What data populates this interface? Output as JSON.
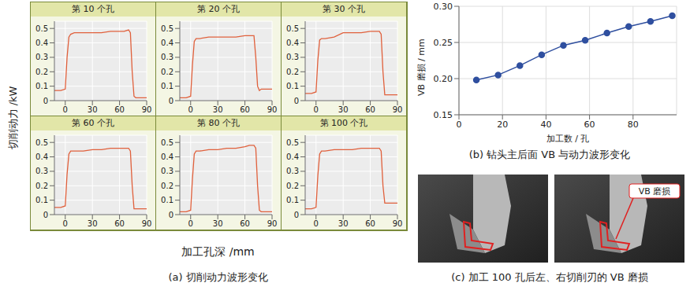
{
  "panel_a": {
    "ylabel": "切削动力 /kW",
    "xlabel": "加工孔深 /mm",
    "caption": "(a) 切削动力波形变化"
  },
  "panel_c": {
    "caption": "(c) 加工 100 孔后左、右切削刃的 VB 磨损",
    "annotation": "VB 磨损"
  },
  "chart_data": [
    {
      "type": "line",
      "title": "第 10 个孔",
      "x": [
        -12,
        -5,
        0,
        2,
        4,
        6,
        10,
        20,
        30,
        40,
        50,
        60,
        65,
        70,
        72,
        74,
        76,
        78,
        80,
        85,
        90
      ],
      "series": [
        {
          "name": "切削动力",
          "color": "#e0603c",
          "values": [
            0.07,
            0.07,
            0.08,
            0.3,
            0.44,
            0.46,
            0.47,
            0.47,
            0.47,
            0.47,
            0.48,
            0.48,
            0.48,
            0.49,
            0.47,
            0.2,
            0.03,
            0.02,
            0.02,
            0.02,
            0.02
          ]
        }
      ],
      "xlim": [
        -12,
        90
      ],
      "ylim": [
        0,
        0.55
      ],
      "xticks": [
        0,
        30,
        60,
        90
      ],
      "yticks": [
        0,
        0.1,
        0.2,
        0.3,
        0.4,
        0.5
      ],
      "grid": true,
      "marker": "none",
      "line_style": "solid"
    },
    {
      "type": "line",
      "title": "第 20 个孔",
      "x": [
        -12,
        -5,
        0,
        2,
        4,
        6,
        10,
        20,
        30,
        40,
        50,
        60,
        65,
        70,
        72,
        74,
        76,
        78,
        80,
        85,
        90
      ],
      "series": [
        {
          "name": "切削动力",
          "color": "#e0603c",
          "values": [
            0.02,
            0.02,
            0.03,
            0.25,
            0.41,
            0.43,
            0.43,
            0.44,
            0.44,
            0.44,
            0.44,
            0.45,
            0.45,
            0.45,
            0.3,
            0.1,
            0.07,
            0.08,
            0.08,
            0.08,
            0.08
          ]
        }
      ],
      "xlim": [
        -12,
        90
      ],
      "ylim": [
        0,
        0.55
      ],
      "xticks": [
        0,
        30,
        60,
        90
      ],
      "yticks": [
        0,
        0.1,
        0.2,
        0.3,
        0.4,
        0.5
      ],
      "grid": true,
      "marker": "none",
      "line_style": "solid"
    },
    {
      "type": "line",
      "title": "第 30 个孔",
      "x": [
        -12,
        -5,
        0,
        2,
        4,
        6,
        10,
        20,
        30,
        40,
        50,
        60,
        65,
        70,
        72,
        74,
        76,
        78,
        80,
        85,
        90
      ],
      "series": [
        {
          "name": "切削动力",
          "color": "#e0603c",
          "values": [
            0.05,
            0.05,
            0.06,
            0.28,
            0.42,
            0.43,
            0.43,
            0.44,
            0.47,
            0.47,
            0.47,
            0.48,
            0.48,
            0.48,
            0.46,
            0.2,
            0.04,
            0.04,
            0.04,
            0.04,
            0.04
          ]
        }
      ],
      "xlim": [
        -12,
        90
      ],
      "ylim": [
        0,
        0.55
      ],
      "xticks": [
        0,
        30,
        60,
        90
      ],
      "yticks": [
        0,
        0.1,
        0.2,
        0.3,
        0.4,
        0.5
      ],
      "grid": true,
      "marker": "none",
      "line_style": "solid"
    },
    {
      "type": "line",
      "title": "第 60 个孔",
      "x": [
        -12,
        -5,
        0,
        2,
        4,
        6,
        10,
        20,
        30,
        40,
        50,
        60,
        65,
        70,
        72,
        74,
        76,
        78,
        80,
        85,
        90
      ],
      "series": [
        {
          "name": "切削动力",
          "color": "#e0603c",
          "values": [
            0.05,
            0.05,
            0.06,
            0.28,
            0.42,
            0.44,
            0.44,
            0.44,
            0.45,
            0.45,
            0.46,
            0.46,
            0.46,
            0.46,
            0.44,
            0.2,
            0.04,
            0.04,
            0.04,
            0.04,
            0.04
          ]
        }
      ],
      "xlim": [
        -12,
        90
      ],
      "ylim": [
        0,
        0.55
      ],
      "xticks": [
        0,
        30,
        60,
        90
      ],
      "yticks": [
        0,
        0.1,
        0.2,
        0.3,
        0.4,
        0.5
      ],
      "grid": true,
      "marker": "none",
      "line_style": "solid"
    },
    {
      "type": "line",
      "title": "第 80 个孔",
      "x": [
        -12,
        -5,
        0,
        2,
        4,
        6,
        10,
        20,
        30,
        40,
        50,
        60,
        65,
        70,
        72,
        74,
        76,
        78,
        80,
        85,
        90
      ],
      "series": [
        {
          "name": "切削动力",
          "color": "#e0603c",
          "values": [
            0.02,
            0.02,
            0.03,
            0.25,
            0.42,
            0.44,
            0.44,
            0.45,
            0.45,
            0.46,
            0.46,
            0.47,
            0.48,
            0.48,
            0.46,
            0.2,
            0.03,
            0.02,
            0.02,
            0.02,
            0.02
          ]
        }
      ],
      "xlim": [
        -12,
        90
      ],
      "ylim": [
        0,
        0.55
      ],
      "xticks": [
        0,
        30,
        60,
        90
      ],
      "yticks": [
        0,
        0.1,
        0.2,
        0.3,
        0.4,
        0.5
      ],
      "grid": true,
      "marker": "none",
      "line_style": "solid"
    },
    {
      "type": "line",
      "title": "第 100 个孔",
      "x": [
        -12,
        -5,
        0,
        2,
        4,
        6,
        10,
        20,
        30,
        40,
        50,
        60,
        65,
        70,
        72,
        74,
        76,
        78,
        80,
        85,
        90
      ],
      "series": [
        {
          "name": "切削动力",
          "color": "#e0603c",
          "values": [
            0.04,
            0.04,
            0.05,
            0.27,
            0.42,
            0.44,
            0.44,
            0.45,
            0.45,
            0.45,
            0.46,
            0.46,
            0.46,
            0.46,
            0.44,
            0.2,
            0.08,
            0.08,
            0.08,
            0.08,
            0.08
          ]
        }
      ],
      "xlim": [
        -12,
        90
      ],
      "ylim": [
        0,
        0.55
      ],
      "xticks": [
        0,
        30,
        60,
        90
      ],
      "yticks": [
        0,
        0.1,
        0.2,
        0.3,
        0.4,
        0.5
      ],
      "grid": true,
      "marker": "none",
      "line_style": "solid"
    },
    {
      "type": "line",
      "caption": "(b) 钻头主后面 VB 与动力波形变化",
      "x_label": "加工数 / 孔",
      "y_label": "VB 磨损 / mm",
      "x": [
        8,
        18,
        28,
        38,
        48,
        58,
        68,
        78,
        88,
        98
      ],
      "series": [
        {
          "name": "VB 磨损",
          "color": "#2f4f9f",
          "values": [
            0.198,
            0.205,
            0.218,
            0.233,
            0.246,
            0.253,
            0.263,
            0.272,
            0.279,
            0.287
          ]
        }
      ],
      "xlim": [
        0,
        100
      ],
      "ylim": [
        0.15,
        0.3
      ],
      "xticks": [
        0,
        20,
        40,
        60,
        80
      ],
      "yticks": [
        {
          "value": 0.15,
          "label": "0.15"
        },
        {
          "value": 0.2,
          "label": "0.20"
        },
        {
          "value": 0.25,
          "label": "0.25"
        },
        {
          "value": 0.3,
          "label": "0.30"
        }
      ],
      "grid": true,
      "marker": "circle",
      "line_style": "solid"
    }
  ]
}
